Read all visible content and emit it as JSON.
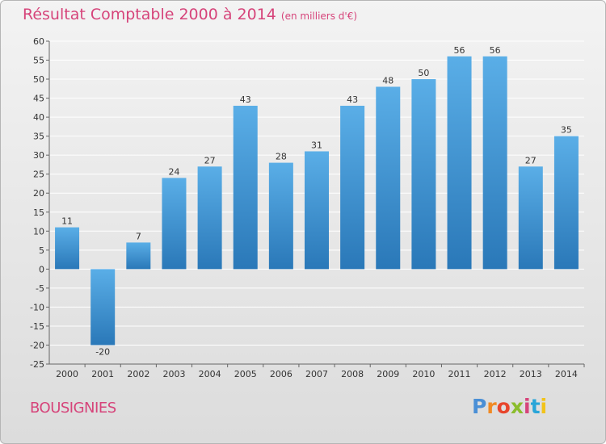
{
  "header": {
    "title": "Résultat Comptable 2000 à 2014",
    "subtitle": "(en milliers d'€)"
  },
  "footer": {
    "commune": "BOUSIGNIES"
  },
  "logo": {
    "text": "Proxiti",
    "colors": [
      "#4a8fd6",
      "#f08a24",
      "#e8452c",
      "#8bbd2d",
      "#d6447a",
      "#29a5d8",
      "#f2c319"
    ]
  },
  "colors": {
    "accent": "#d6447a",
    "bar_light": "#5aaee7",
    "bar_dark": "#2a78b8"
  },
  "chart_data": {
    "type": "bar",
    "title": "Résultat Comptable 2000 à 2014",
    "subtitle": "(en milliers d'€)",
    "xlabel": "",
    "ylabel": "",
    "categories": [
      "2000",
      "2001",
      "2002",
      "2003",
      "2004",
      "2005",
      "2006",
      "2007",
      "2008",
      "2009",
      "2010",
      "2011",
      "2012",
      "2013",
      "2014"
    ],
    "values": [
      11,
      -20,
      7,
      24,
      27,
      43,
      28,
      31,
      43,
      48,
      50,
      56,
      56,
      27,
      35
    ],
    "ylim": [
      -25,
      60
    ],
    "yticks": [
      60,
      55,
      50,
      45,
      40,
      35,
      30,
      25,
      20,
      15,
      10,
      5,
      0,
      -5,
      -10,
      -15,
      -20,
      -25
    ],
    "grid": true
  }
}
